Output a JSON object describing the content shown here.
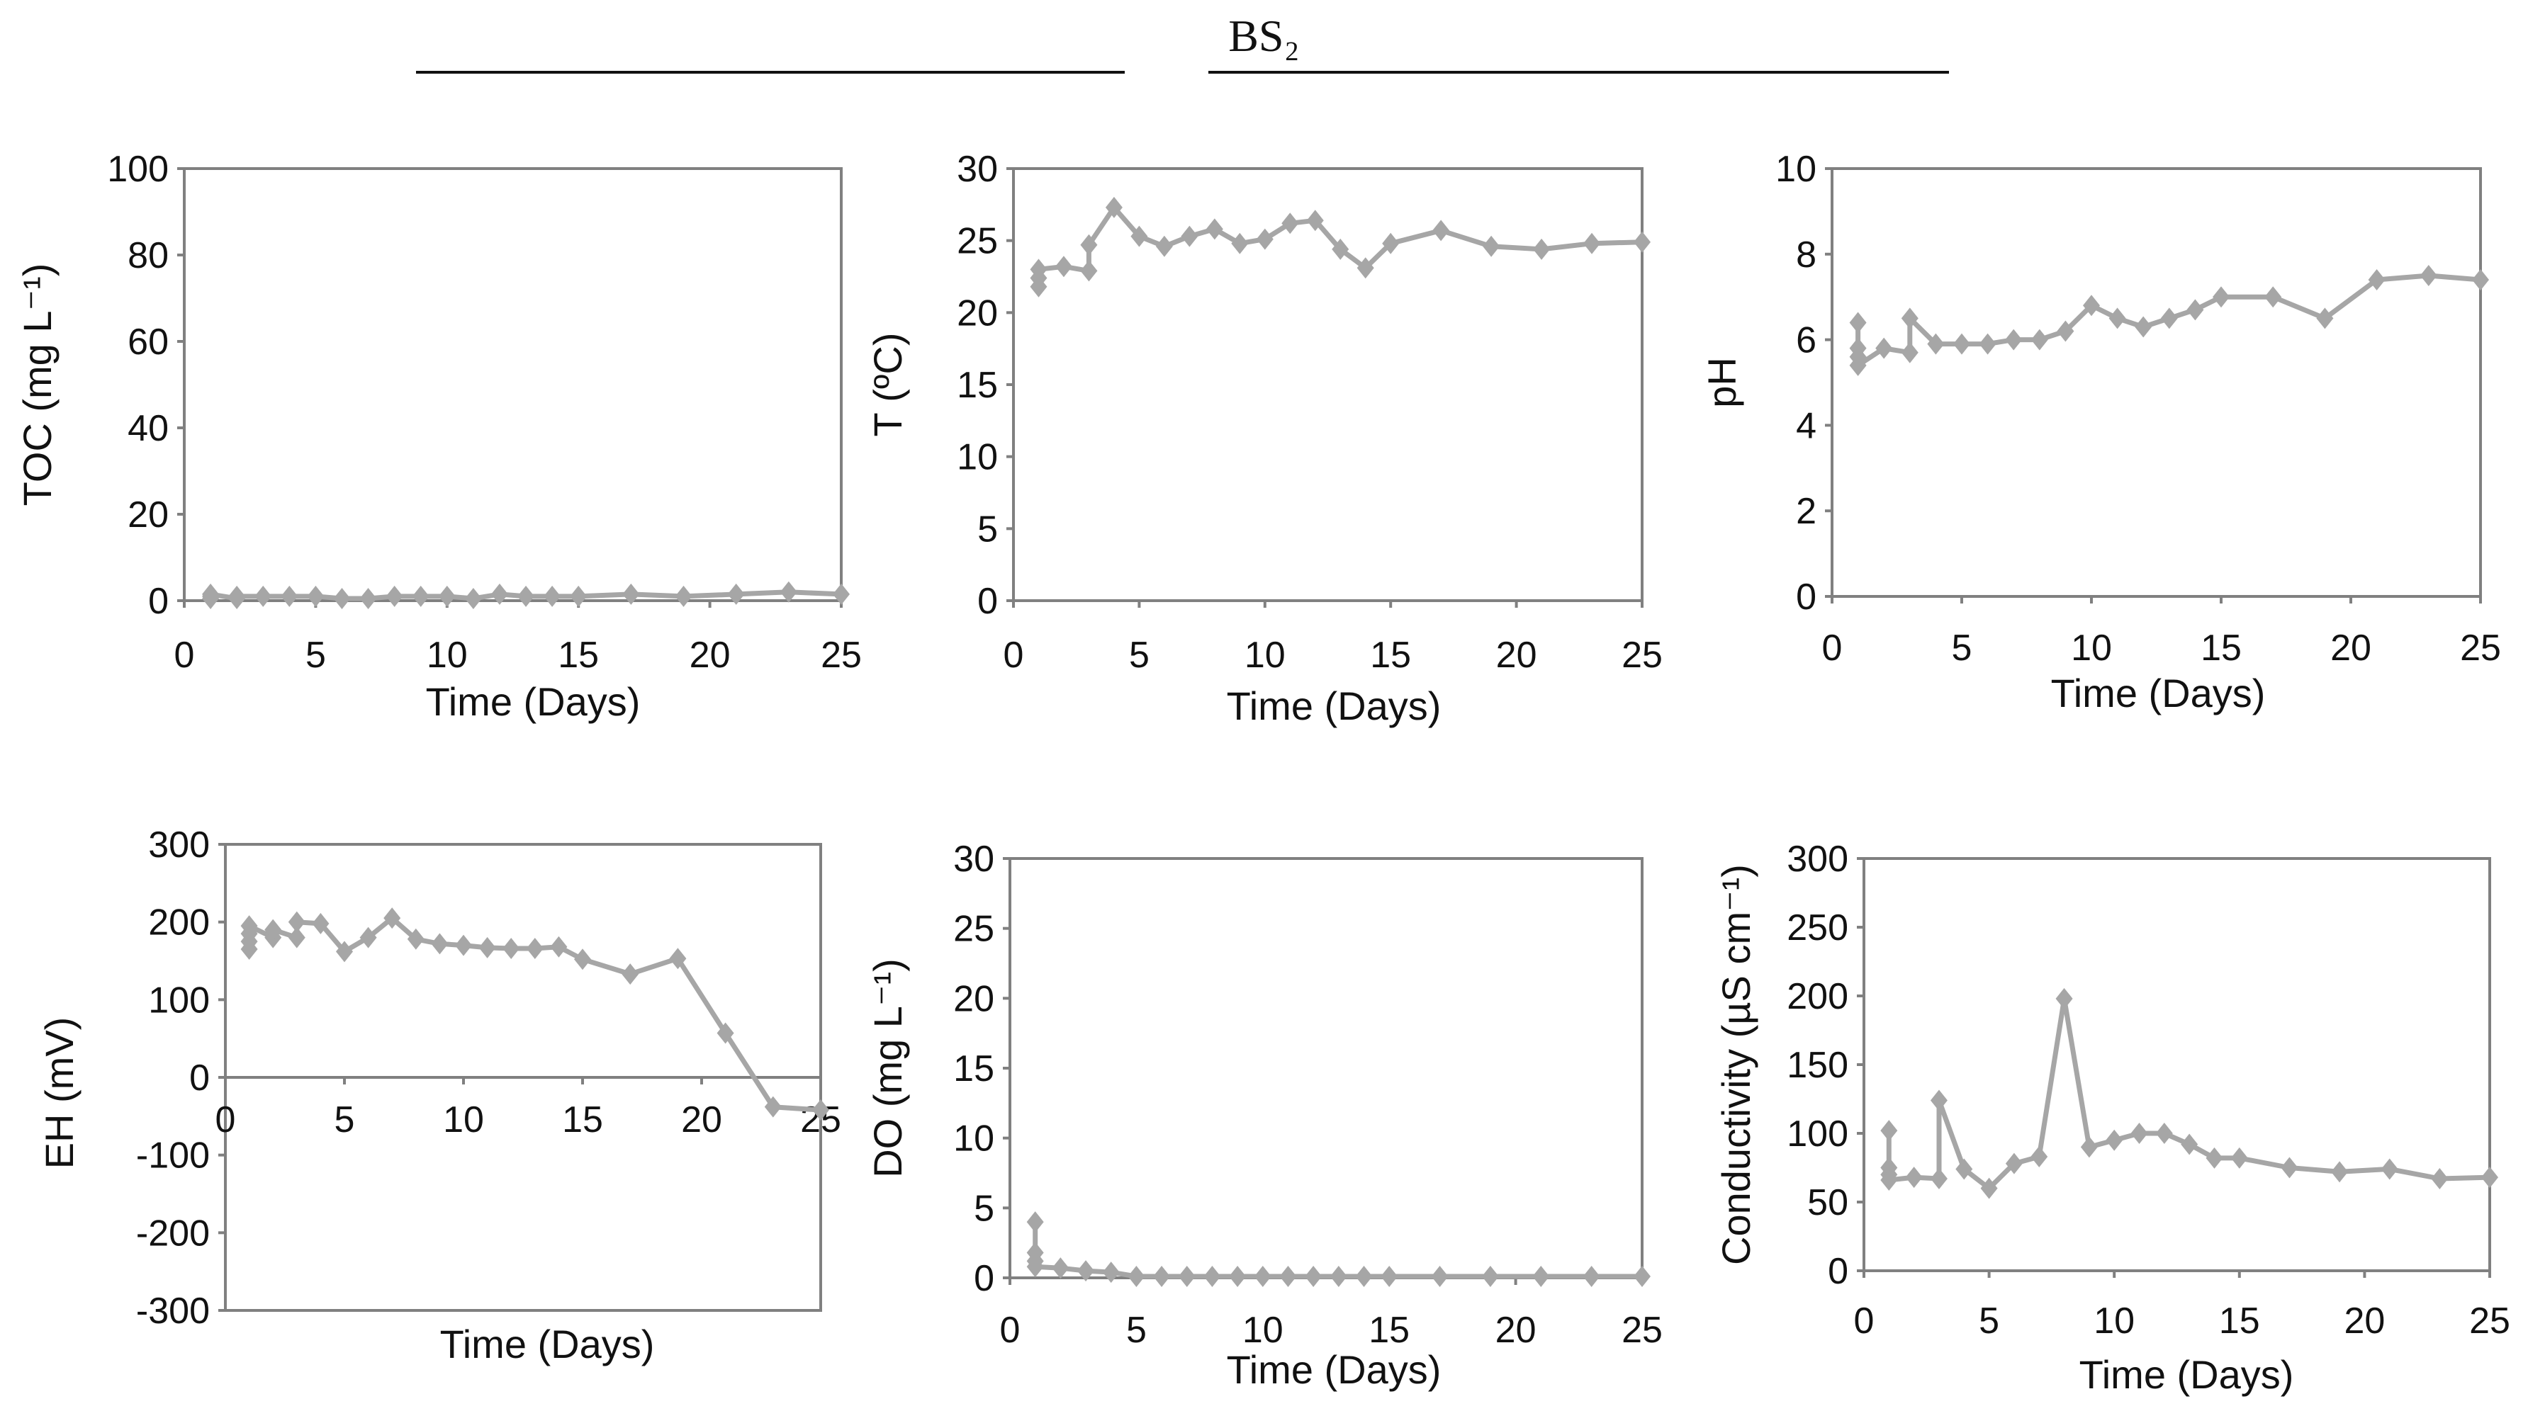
{
  "figure": {
    "title": "BS₂"
  },
  "chart_data": [
    {
      "id": "toc",
      "type": "line",
      "title": "",
      "xlabel": "Time (Days)",
      "ylabel": "TOC (mg L⁻¹)",
      "xlim": [
        0,
        25
      ],
      "ylim": [
        0,
        100
      ],
      "xticks": [
        0,
        5,
        10,
        15,
        20,
        25
      ],
      "yticks": [
        0,
        20,
        40,
        60,
        80,
        100
      ],
      "series": [
        {
          "name": "BS2",
          "x": [
            1,
            1,
            1,
            2,
            2,
            3,
            4,
            5,
            6,
            7,
            8,
            9,
            10,
            11,
            12,
            13,
            14,
            15,
            17,
            19,
            21,
            23,
            25
          ],
          "y": [
            0.5,
            1,
            1.5,
            0.5,
            1,
            1,
            1,
            1,
            0.5,
            0.5,
            1,
            1,
            1,
            0.5,
            1.5,
            1,
            1,
            1,
            1.5,
            1,
            1.5,
            2,
            1.5
          ]
        }
      ]
    },
    {
      "id": "temperature",
      "type": "line",
      "title": "",
      "xlabel": "Time (Days)",
      "ylabel": "T (ºC)",
      "xlim": [
        0,
        25
      ],
      "ylim": [
        0,
        30
      ],
      "xticks": [
        0,
        5,
        10,
        15,
        20,
        25
      ],
      "yticks": [
        0,
        5,
        10,
        15,
        20,
        25,
        30
      ],
      "series": [
        {
          "name": "BS2",
          "x": [
            1,
            1,
            1,
            2,
            3,
            3,
            4,
            5,
            6,
            7,
            8,
            9,
            10,
            11,
            12,
            13,
            14,
            15,
            17,
            19,
            21,
            23,
            25
          ],
          "y": [
            21.8,
            22.4,
            23.0,
            23.2,
            22.9,
            24.7,
            27.3,
            25.3,
            24.6,
            25.3,
            25.8,
            24.8,
            25.1,
            26.2,
            26.4,
            24.4,
            23.1,
            24.8,
            25.7,
            24.6,
            24.4,
            24.8,
            24.9
          ]
        }
      ]
    },
    {
      "id": "ph",
      "type": "line",
      "title": "",
      "xlabel": "Time (Days)",
      "ylabel": "pH",
      "xlim": [
        0,
        25
      ],
      "ylim": [
        0,
        10
      ],
      "xticks": [
        0,
        5,
        10,
        15,
        20,
        25
      ],
      "yticks": [
        0,
        2,
        4,
        6,
        8,
        10
      ],
      "series": [
        {
          "name": "BS2",
          "x": [
            1,
            1,
            1,
            1,
            2,
            3,
            3,
            4,
            5,
            6,
            7,
            8,
            9,
            10,
            11,
            12,
            13,
            14,
            15,
            17,
            19,
            21,
            23,
            25
          ],
          "y": [
            6.4,
            5.8,
            5.6,
            5.4,
            5.8,
            5.7,
            6.5,
            5.9,
            5.9,
            5.9,
            6.0,
            6.0,
            6.2,
            6.8,
            6.5,
            6.3,
            6.5,
            6.7,
            7.0,
            7.0,
            6.5,
            7.4,
            7.5,
            7.4
          ]
        }
      ]
    },
    {
      "id": "eh",
      "type": "line",
      "title": "",
      "xlabel": "Time (Days)",
      "ylabel": "EH (mV)",
      "xlim": [
        0,
        25
      ],
      "ylim": [
        -300,
        300
      ],
      "xticks": [
        0,
        5,
        10,
        15,
        20,
        25
      ],
      "yticks": [
        -300,
        -200,
        -100,
        0,
        100,
        200,
        300
      ],
      "series": [
        {
          "name": "BS2",
          "x": [
            1,
            1,
            1,
            1,
            2,
            2,
            3,
            3,
            4,
            5,
            6,
            7,
            8,
            9,
            10,
            11,
            12,
            13,
            14,
            15,
            17,
            19,
            21,
            23,
            25
          ],
          "y": [
            165,
            175,
            185,
            195,
            180,
            190,
            180,
            200,
            198,
            162,
            180,
            205,
            178,
            172,
            170,
            167,
            166,
            166,
            168,
            152,
            133,
            153,
            57,
            -38,
            -42
          ]
        }
      ]
    },
    {
      "id": "do",
      "type": "line",
      "title": "",
      "xlabel": "Time (Days)",
      "ylabel": "DO (mg L⁻¹)",
      "xlim": [
        0,
        25
      ],
      "ylim": [
        0,
        30
      ],
      "xticks": [
        0,
        5,
        10,
        15,
        20,
        25
      ],
      "yticks": [
        0,
        5,
        10,
        15,
        20,
        25,
        30
      ],
      "series": [
        {
          "name": "BS2",
          "x": [
            1,
            1,
            1,
            1,
            2,
            3,
            4,
            5,
            6,
            7,
            8,
            9,
            10,
            11,
            12,
            13,
            14,
            15,
            17,
            19,
            21,
            23,
            25
          ],
          "y": [
            4.0,
            1.8,
            1.2,
            0.8,
            0.7,
            0.5,
            0.4,
            0.1,
            0.1,
            0.1,
            0.1,
            0.1,
            0.1,
            0.1,
            0.1,
            0.1,
            0.1,
            0.1,
            0.1,
            0.1,
            0.1,
            0.1,
            0.1
          ]
        }
      ]
    },
    {
      "id": "conductivity",
      "type": "line",
      "title": "",
      "xlabel": "Time (Days)",
      "ylabel": "Conductivity (µS cm⁻¹)",
      "xlim": [
        0,
        25
      ],
      "ylim": [
        0,
        300
      ],
      "xticks": [
        0,
        5,
        10,
        15,
        20,
        25
      ],
      "yticks": [
        0,
        50,
        100,
        150,
        200,
        250,
        300
      ],
      "series": [
        {
          "name": "BS2",
          "x": [
            1,
            1,
            1,
            1,
            2,
            3,
            3,
            4,
            5,
            6,
            7,
            8,
            9,
            10,
            11,
            12,
            13,
            14,
            15,
            17,
            19,
            21,
            23,
            25
          ],
          "y": [
            102,
            75,
            70,
            66,
            68,
            67,
            124,
            74,
            60,
            78,
            83,
            198,
            90,
            95,
            100,
            100,
            92,
            82,
            82,
            75,
            72,
            74,
            67,
            68
          ]
        }
      ]
    }
  ]
}
